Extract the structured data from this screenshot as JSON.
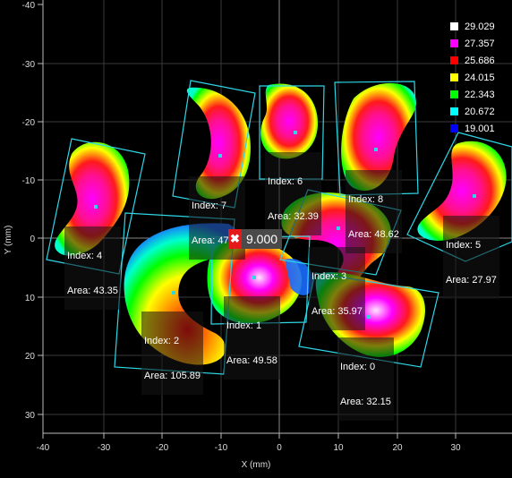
{
  "plot": {
    "x_label": "X (mm)",
    "y_label": "Y (mm)",
    "x_ticks": [
      "-40",
      "-30",
      "-20",
      "-10",
      "0",
      "10",
      "20",
      "30"
    ],
    "y_ticks": [
      "-40",
      "-30",
      "-20",
      "-10",
      "0",
      "10",
      "20",
      "30"
    ]
  },
  "legend": [
    {
      "value": "29.029",
      "color": "#ffffff"
    },
    {
      "value": "27.357",
      "color": "#ff00ff"
    },
    {
      "value": "25.686",
      "color": "#ff0000"
    },
    {
      "value": "24.015",
      "color": "#ffff00"
    },
    {
      "value": "22.343",
      "color": "#00ff00"
    },
    {
      "value": "20.672",
      "color": "#00ffff"
    },
    {
      "value": "19.001",
      "color": "#0000ff"
    }
  ],
  "cursor": {
    "value": "9.000",
    "close_symbol": "✖"
  },
  "objects": [
    {
      "index": "Index: 0",
      "area": "Area: 32.15"
    },
    {
      "index": "Index: 1",
      "area": "Area: 49.58"
    },
    {
      "index": "Index: 2",
      "area": "Area: 105.89"
    },
    {
      "index": "Index: 3",
      "area": "Area: 35.97"
    },
    {
      "index": "Index: 4",
      "area": "Area: 43.35"
    },
    {
      "index": "Index: 5",
      "area": "Area: 27.97"
    },
    {
      "index": "Index: 6",
      "area": "Area: 32.39"
    },
    {
      "index": "Index: 7",
      "area": "Area: 47.23"
    },
    {
      "index": "Index: 8",
      "area": "Area: 48.62"
    }
  ]
}
